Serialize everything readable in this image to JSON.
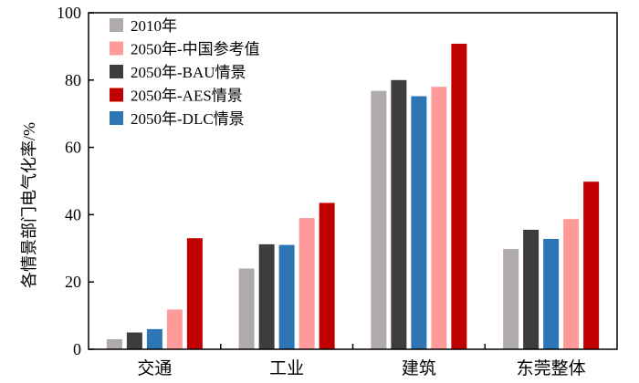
{
  "chart_data": {
    "type": "bar",
    "ylabel": "各情景部门电气化率/%",
    "xlabel": "",
    "ylim": [
      0,
      100
    ],
    "yticks": [
      0,
      20,
      40,
      60,
      80,
      100
    ],
    "categories": [
      "交通",
      "工业",
      "建筑",
      "东莞整体"
    ],
    "legend_position": "top-left",
    "legend_order": [
      0,
      3,
      1,
      4,
      2
    ],
    "series": [
      {
        "name": "2010年",
        "color": "#b0aaab",
        "values": [
          3,
          24,
          76.8,
          29.8
        ]
      },
      {
        "name": "2050年-BAU情景",
        "color": "#3d3d3d",
        "values": [
          5,
          31.2,
          80,
          35.5
        ]
      },
      {
        "name": "2050年-DLC情景",
        "color": "#2e75b6",
        "values": [
          6,
          31,
          75.2,
          32.8
        ]
      },
      {
        "name": "2050年-中国参考值",
        "color": "#ff9a9a",
        "values": [
          11.8,
          39,
          78,
          38.7
        ]
      },
      {
        "name": "2050年-AES情景",
        "color": "#c00000",
        "values": [
          33,
          43.5,
          90.8,
          49.8
        ]
      }
    ]
  }
}
